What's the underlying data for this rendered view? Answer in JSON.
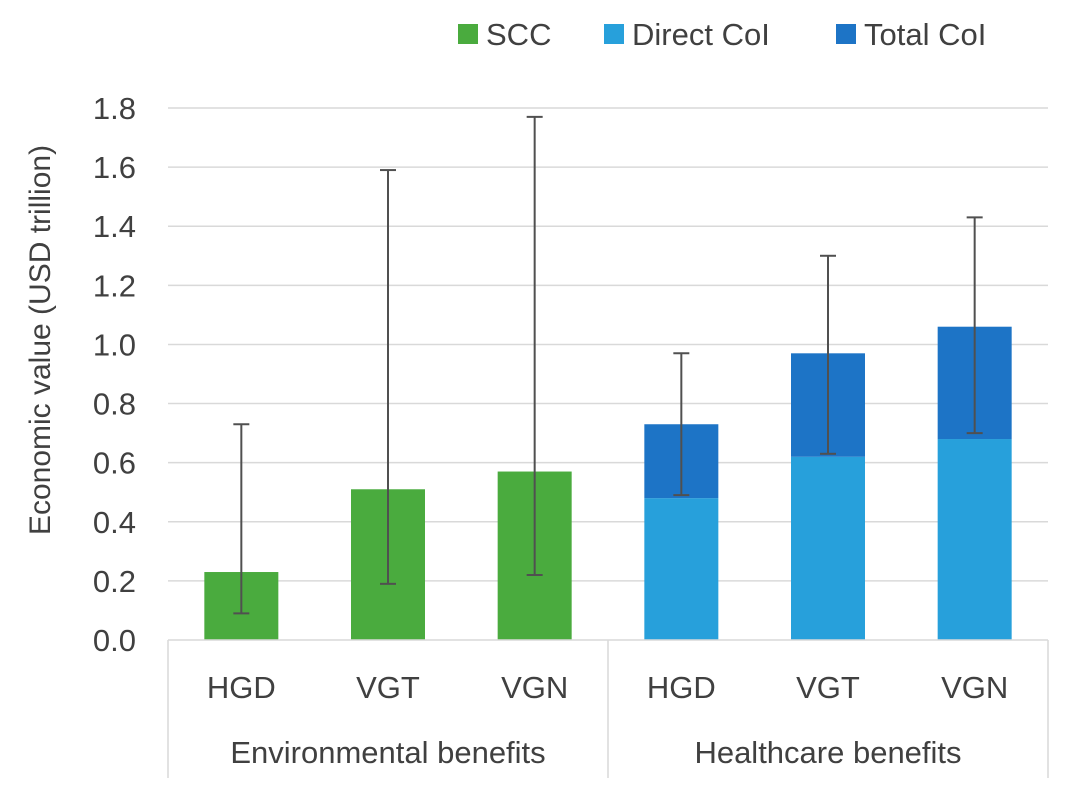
{
  "chart_data": {
    "type": "bar",
    "stacked": true,
    "title": "",
    "xlabel": "",
    "ylabel": "Economic value (USD trillion)",
    "ylim": [
      0,
      1.8
    ],
    "yticks": [
      "0.0",
      "0.2",
      "0.4",
      "0.6",
      "0.8",
      "1.0",
      "1.2",
      "1.4",
      "1.6",
      "1.8"
    ],
    "grid": true,
    "legend_position": "top-right",
    "groups": [
      {
        "label": "Environmental benefits",
        "categories": [
          "HGD",
          "VGT",
          "VGN"
        ]
      },
      {
        "label": "Healthcare benefits",
        "categories": [
          "HGD",
          "VGT",
          "VGN"
        ]
      }
    ],
    "categories": [
      "HGD",
      "VGT",
      "VGN",
      "HGD",
      "VGT",
      "VGN"
    ],
    "series": [
      {
        "name": "SCC",
        "color": "#4aab3e",
        "values": [
          0.23,
          0.51,
          0.57,
          null,
          null,
          null
        ]
      },
      {
        "name": "Direct CoI",
        "color": "#27a0db",
        "values": [
          null,
          null,
          null,
          0.48,
          0.62,
          0.68
        ]
      },
      {
        "name": "Total CoI",
        "color": "#1d74c6",
        "values": [
          null,
          null,
          null,
          0.25,
          0.35,
          0.38
        ]
      }
    ],
    "totals": [
      0.23,
      0.51,
      0.57,
      0.73,
      0.97,
      1.06
    ],
    "error_bars": [
      {
        "low": 0.09,
        "high": 0.73
      },
      {
        "low": 0.19,
        "high": 1.59
      },
      {
        "low": 0.22,
        "high": 1.77
      },
      {
        "low": 0.49,
        "high": 0.97
      },
      {
        "low": 0.63,
        "high": 1.3
      },
      {
        "low": 0.7,
        "high": 1.43
      }
    ]
  },
  "legend": [
    {
      "label": "SCC",
      "color": "#4aab3e"
    },
    {
      "label": "Direct CoI",
      "color": "#27a0db"
    },
    {
      "label": "Total CoI",
      "color": "#1d74c6"
    }
  ]
}
